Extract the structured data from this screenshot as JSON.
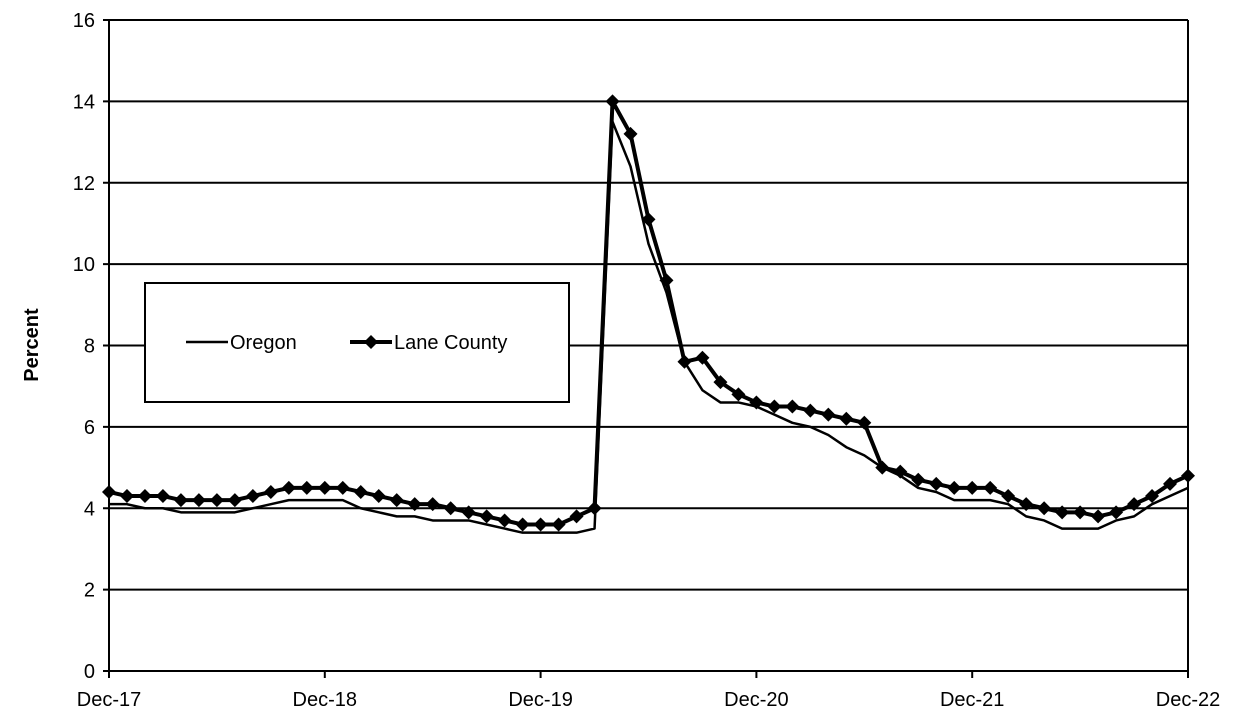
{
  "chart_data": {
    "type": "line",
    "title": "",
    "xlabel": "",
    "ylabel": "Percent",
    "ylim": [
      0,
      16
    ],
    "yticks": [
      0,
      2,
      4,
      6,
      8,
      10,
      12,
      14,
      16
    ],
    "xlim": [
      "Dec-17",
      "Dec-22"
    ],
    "xtick_labels": [
      "Dec-17",
      "Dec-18",
      "Dec-19",
      "Dec-20",
      "Dec-21",
      "Dec-22"
    ],
    "grid": "horizontal",
    "legend": {
      "placement": "center-left",
      "entries": [
        "Oregon",
        "Lane County"
      ]
    },
    "x": [
      "Dec-17",
      "Jan-18",
      "Feb-18",
      "Mar-18",
      "Apr-18",
      "May-18",
      "Jun-18",
      "Jul-18",
      "Aug-18",
      "Sep-18",
      "Oct-18",
      "Nov-18",
      "Dec-18",
      "Jan-19",
      "Feb-19",
      "Mar-19",
      "Apr-19",
      "May-19",
      "Jun-19",
      "Jul-19",
      "Aug-19",
      "Sep-19",
      "Oct-19",
      "Nov-19",
      "Dec-19",
      "Jan-20",
      "Feb-20",
      "Mar-20",
      "Apr-20",
      "May-20",
      "Jun-20",
      "Jul-20",
      "Aug-20",
      "Sep-20",
      "Oct-20",
      "Nov-20",
      "Dec-20",
      "Jan-21",
      "Feb-21",
      "Mar-21",
      "Apr-21",
      "May-21",
      "Jun-21",
      "Jul-21",
      "Aug-21",
      "Sep-21",
      "Oct-21",
      "Nov-21",
      "Dec-21",
      "Jan-22",
      "Feb-22",
      "Mar-22",
      "Apr-22",
      "May-22",
      "Jun-22",
      "Jul-22",
      "Aug-22",
      "Sep-22",
      "Oct-22",
      "Nov-22",
      "Dec-22"
    ],
    "series": [
      {
        "name": "Oregon",
        "marker": "none",
        "values": [
          4.1,
          4.1,
          4.0,
          4.0,
          3.9,
          3.9,
          3.9,
          3.9,
          4.0,
          4.1,
          4.2,
          4.2,
          4.2,
          4.2,
          4.0,
          3.9,
          3.8,
          3.8,
          3.7,
          3.7,
          3.7,
          3.6,
          3.5,
          3.4,
          3.4,
          3.4,
          3.4,
          3.5,
          13.5,
          12.4,
          10.5,
          9.3,
          7.6,
          6.9,
          6.6,
          6.6,
          6.5,
          6.3,
          6.1,
          6.0,
          5.8,
          5.5,
          5.3,
          5.0,
          4.8,
          4.5,
          4.4,
          4.2,
          4.2,
          4.2,
          4.1,
          3.8,
          3.7,
          3.5,
          3.5,
          3.5,
          3.7,
          3.8,
          4.1,
          4.3,
          4.5
        ]
      },
      {
        "name": "Lane County",
        "marker": "diamond",
        "values": [
          4.4,
          4.3,
          4.3,
          4.3,
          4.2,
          4.2,
          4.2,
          4.2,
          4.3,
          4.4,
          4.5,
          4.5,
          4.5,
          4.5,
          4.4,
          4.3,
          4.2,
          4.1,
          4.1,
          4.0,
          3.9,
          3.8,
          3.7,
          3.6,
          3.6,
          3.6,
          3.8,
          4.0,
          14.0,
          13.2,
          11.1,
          9.6,
          7.6,
          7.7,
          7.1,
          6.8,
          6.6,
          6.5,
          6.5,
          6.4,
          6.3,
          6.2,
          6.1,
          5.0,
          4.9,
          4.7,
          4.6,
          4.5,
          4.5,
          4.5,
          4.3,
          4.1,
          4.0,
          3.9,
          3.9,
          3.8,
          3.9,
          4.1,
          4.3,
          4.6,
          4.8
        ]
      }
    ]
  }
}
